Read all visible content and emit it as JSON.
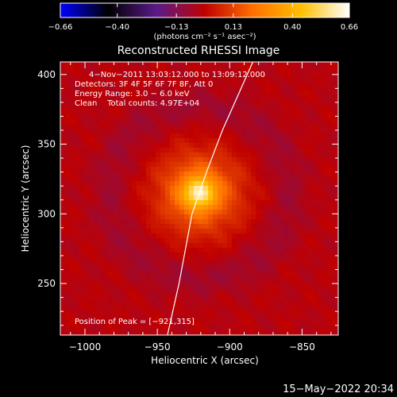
{
  "chart_data": {
    "type": "heatmap",
    "title": "Reconstructed RHESSI Image",
    "xlabel": "Heliocentric X (arcsec)",
    "ylabel": "Heliocentric Y (arcsec)",
    "xlim": [
      -1017,
      -825
    ],
    "ylim": [
      213,
      409
    ],
    "x_ticks": [
      {
        "value": -1000,
        "label": "−1000"
      },
      {
        "value": -950,
        "label": "−950"
      },
      {
        "value": -900,
        "label": "−900"
      },
      {
        "value": -850,
        "label": "−850"
      }
    ],
    "y_ticks": [
      {
        "value": 250,
        "label": "250"
      },
      {
        "value": 300,
        "label": "300"
      },
      {
        "value": 350,
        "label": "350"
      },
      {
        "value": 400,
        "label": "400"
      }
    ],
    "colorbar": {
      "range": [
        -0.66,
        0.66
      ],
      "ticks": [
        {
          "value": -0.66,
          "label": "−0.66"
        },
        {
          "value": -0.4,
          "label": "−0.40"
        },
        {
          "value": -0.13,
          "label": "−0.13"
        },
        {
          "value": 0.13,
          "label": "0.13"
        },
        {
          "value": 0.4,
          "label": "0.40"
        },
        {
          "value": 0.66,
          "label": "0.66"
        }
      ],
      "unit_label": "(photons cm⁻² s⁻¹ asec⁻²)",
      "colors": [
        "#0000ff",
        "#000000",
        "#5b1a8a",
        "#c00000",
        "#ff7000",
        "#ffc000",
        "#ffffff"
      ]
    },
    "source": {
      "x": -921,
      "y": 315,
      "peak": 0.66,
      "core_sigma": 7,
      "halo_sigma": 20,
      "halo_amp": 0.3
    },
    "ring": {
      "x": -921,
      "y": 315,
      "radius": 62,
      "width": 18,
      "amp": -0.05
    },
    "background": -0.02,
    "limb_curve": [
      {
        "x": -943,
        "y": 213
      },
      {
        "x": -935,
        "y": 250
      },
      {
        "x": -926,
        "y": 300
      },
      {
        "x": -916,
        "y": 330
      },
      {
        "x": -905,
        "y": 360
      },
      {
        "x": -884,
        "y": 409
      }
    ],
    "annotations": [
      "4−Nov−2011 13:03:12.000 to 13:09:12.000",
      "Detectors: 3F 4F 5F 6F 7F 8F, Att 0",
      "Energy Range: 3.0 − 6.0 keV",
      "Clean    Total counts: 4.97E+04"
    ],
    "peak_label": "Position of Peak = [−921,315]"
  },
  "timestamp": "15−May−2022 20:34"
}
